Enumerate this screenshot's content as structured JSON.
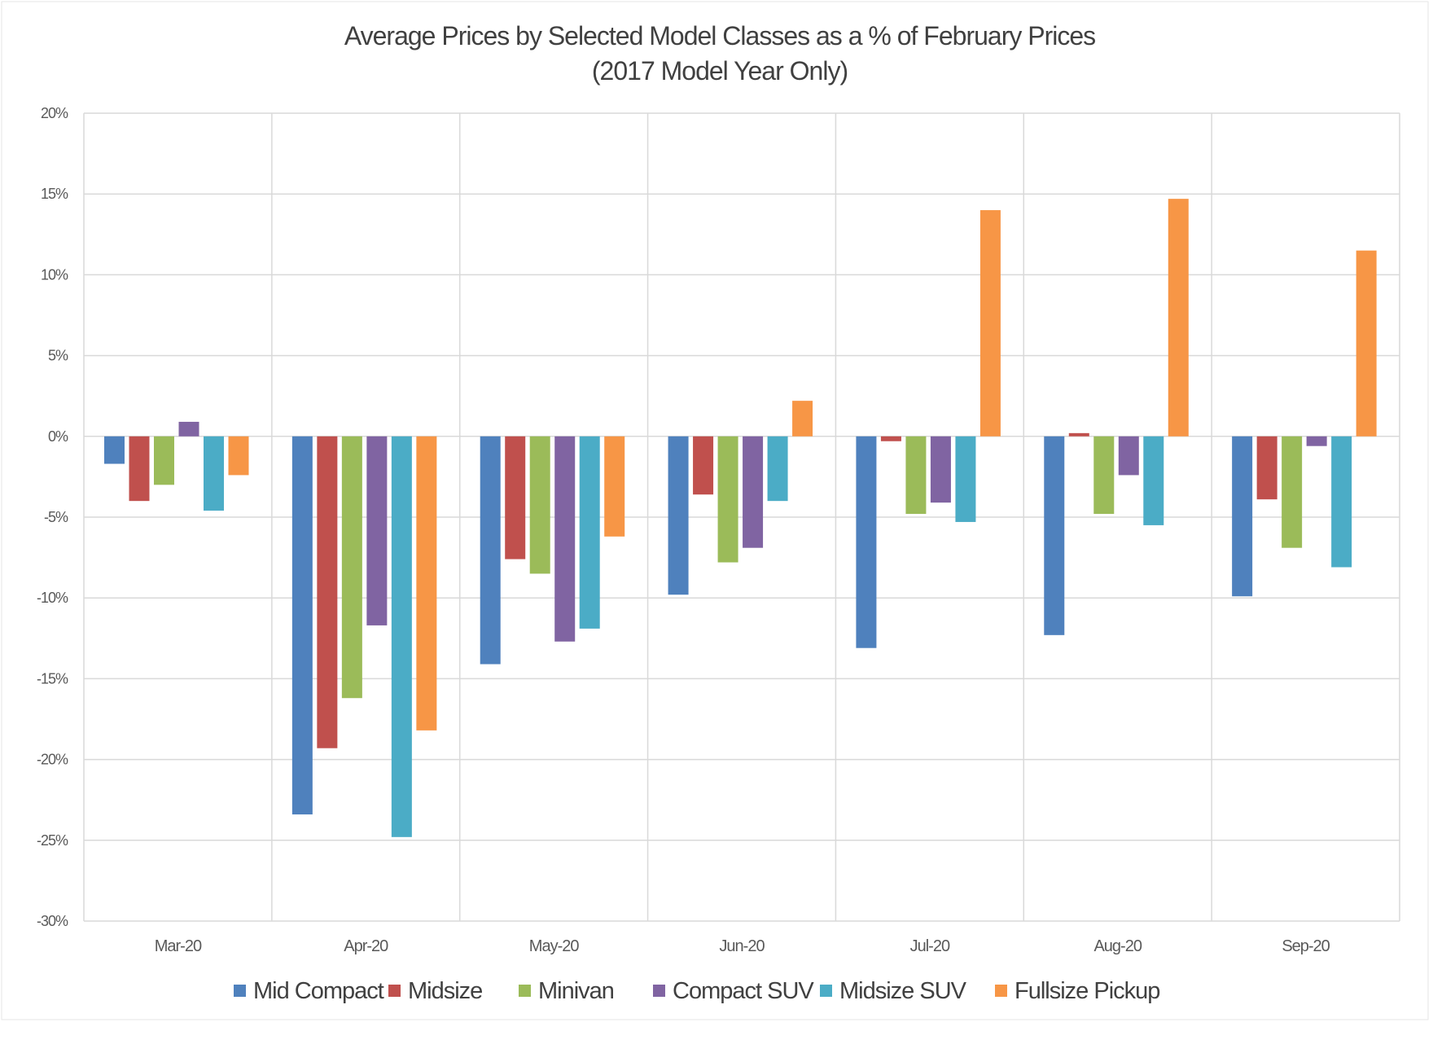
{
  "chart_data": {
    "type": "bar",
    "title": "Average Prices by Selected Model Classes as a % of February Prices",
    "subtitle": "(2017 Model Year Only)",
    "xlabel": "",
    "ylabel": "",
    "ylim": [
      -30,
      20
    ],
    "yticks": [
      20,
      15,
      10,
      5,
      0,
      -5,
      -10,
      -15,
      -20,
      -25,
      -30
    ],
    "ytick_labels": [
      "20%",
      "15%",
      "10%",
      "5%",
      "0%",
      "-5%",
      "-10%",
      "-15%",
      "-20%",
      "-25%",
      "-30%"
    ],
    "grid": true,
    "legend_position": "bottom",
    "categories": [
      "Mar-20",
      "Apr-20",
      "May-20",
      "Jun-20",
      "Jul-20",
      "Aug-20",
      "Sep-20"
    ],
    "series": [
      {
        "name": "Mid Compact",
        "color": "#4f81bd",
        "values": [
          -1.7,
          -23.4,
          -14.1,
          -9.8,
          -13.1,
          -12.3,
          -9.9
        ]
      },
      {
        "name": "Midsize",
        "color": "#c0504d",
        "values": [
          -4.0,
          -19.3,
          -7.6,
          -3.6,
          -0.3,
          0.2,
          -3.9
        ]
      },
      {
        "name": "Minivan",
        "color": "#9bbb59",
        "values": [
          -3.0,
          -16.2,
          -8.5,
          -7.8,
          -4.8,
          -4.8,
          -6.9
        ]
      },
      {
        "name": "Compact SUV",
        "color": "#8064a2",
        "values": [
          0.9,
          -11.7,
          -12.7,
          -6.9,
          -4.1,
          -2.4,
          -0.6
        ]
      },
      {
        "name": "Midsize SUV",
        "color": "#4bacc6",
        "values": [
          -4.6,
          -24.8,
          -11.9,
          -4.0,
          -5.3,
          -5.5,
          -8.1
        ]
      },
      {
        "name": "Fullsize Pickup",
        "color": "#f79646",
        "values": [
          -2.4,
          -18.2,
          -6.2,
          2.2,
          14.0,
          14.7,
          11.5
        ]
      }
    ]
  }
}
